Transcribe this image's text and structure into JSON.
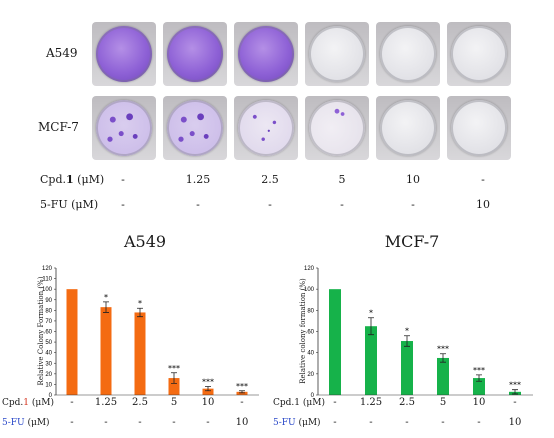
{
  "photo": {
    "rows": [
      {
        "label": "A549",
        "wells": [
          "full",
          "full",
          "full",
          "empty",
          "empty",
          "empty"
        ]
      },
      {
        "label": "MCF-7",
        "wells": [
          "dense",
          "dense",
          "medium",
          "sparse",
          "empty",
          "empty"
        ]
      }
    ],
    "cond_rows": [
      {
        "label_prefix": "Cpd.",
        "label_bold": "1",
        "label_suffix": " (μM)",
        "values": [
          "-",
          "1.25",
          "2.5",
          "5",
          "10",
          "-"
        ]
      },
      {
        "label_prefix": "5-FU (μM)",
        "label_bold": "",
        "label_suffix": "",
        "values": [
          "-",
          "-",
          "-",
          "-",
          "-",
          "10"
        ]
      }
    ]
  },
  "chart_data": [
    {
      "type": "bar",
      "title": "A549",
      "ylabel": "Relative Colony Formation (%)",
      "xlabel": "",
      "ylim": [
        0,
        120
      ],
      "yticks": [
        "0",
        "10",
        "20",
        "30",
        "40",
        "50",
        "60",
        "70",
        "80",
        "90",
        "100",
        "110",
        "120"
      ],
      "color": "#f46b12",
      "categories": [
        "1",
        "2",
        "3",
        "4",
        "5",
        "6"
      ],
      "values": [
        100,
        83,
        78,
        16,
        6,
        3
      ],
      "errors": [
        0,
        5,
        4,
        5,
        2,
        1
      ],
      "significance": [
        "",
        "*",
        "*",
        "***",
        "***",
        "***"
      ],
      "x_rows": [
        {
          "label_prefix": "Cpd.",
          "label_colored": "1",
          "label_suffix": " (μM)",
          "label_color": "red",
          "values": [
            "-",
            "1.25",
            "2.5",
            "5",
            "10",
            "-"
          ]
        },
        {
          "label_prefix": "",
          "label_colored": "5-FU",
          "label_suffix": " (μM)",
          "label_color": "blue",
          "values": [
            "-",
            "-",
            "-",
            "-",
            "-",
            "10"
          ]
        }
      ]
    },
    {
      "type": "bar",
      "title": "MCF-7",
      "ylabel": "Relative colony formation (%)",
      "xlabel": "",
      "ylim": [
        0,
        120
      ],
      "yticks": [
        "0",
        "20",
        "40",
        "60",
        "80",
        "100",
        "120"
      ],
      "color": "#16b24a",
      "categories": [
        "1",
        "2",
        "3",
        "4",
        "5",
        "6"
      ],
      "values": [
        100,
        65,
        51,
        35,
        16,
        3
      ],
      "errors": [
        0,
        8,
        5,
        4,
        3,
        2
      ],
      "significance": [
        "",
        "*",
        "*",
        "***",
        "***",
        "***"
      ],
      "x_rows": [
        {
          "label_prefix": "Cpd.",
          "label_colored": "1",
          "label_suffix": " (μM)",
          "label_color": "black",
          "values": [
            "-",
            "1.25",
            "2.5",
            "5",
            "10",
            "-"
          ]
        },
        {
          "label_prefix": "",
          "label_colored": "5-FU",
          "label_suffix": " (μM)",
          "label_color": "blue",
          "values": [
            "-",
            "-",
            "-",
            "-",
            "-",
            "10"
          ]
        }
      ]
    }
  ]
}
